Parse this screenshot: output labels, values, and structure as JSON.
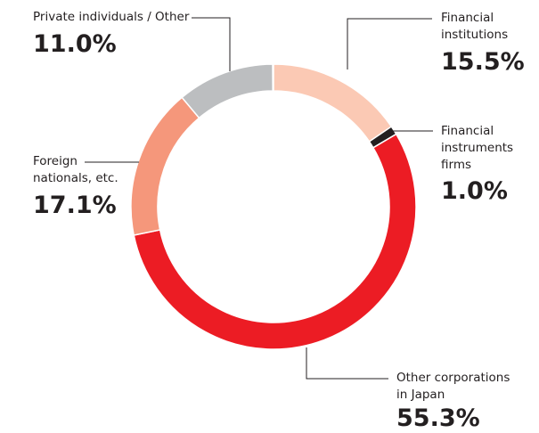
{
  "chart_data": {
    "type": "donut",
    "categories": [
      "Financial institutions",
      "Financial instruments firms",
      "Other corporations in Japan",
      "Foreign nationals, etc.",
      "Private individuals / Other"
    ],
    "values": [
      15.5,
      1.0,
      55.3,
      17.1,
      11.0
    ],
    "value_labels": [
      "15.5%",
      "1.0%",
      "55.3%",
      "17.1%",
      "11.0%"
    ],
    "colors": [
      "#fbc9b4",
      "#231f20",
      "#ec1c24",
      "#f5977b",
      "#bcbec0"
    ]
  }
}
